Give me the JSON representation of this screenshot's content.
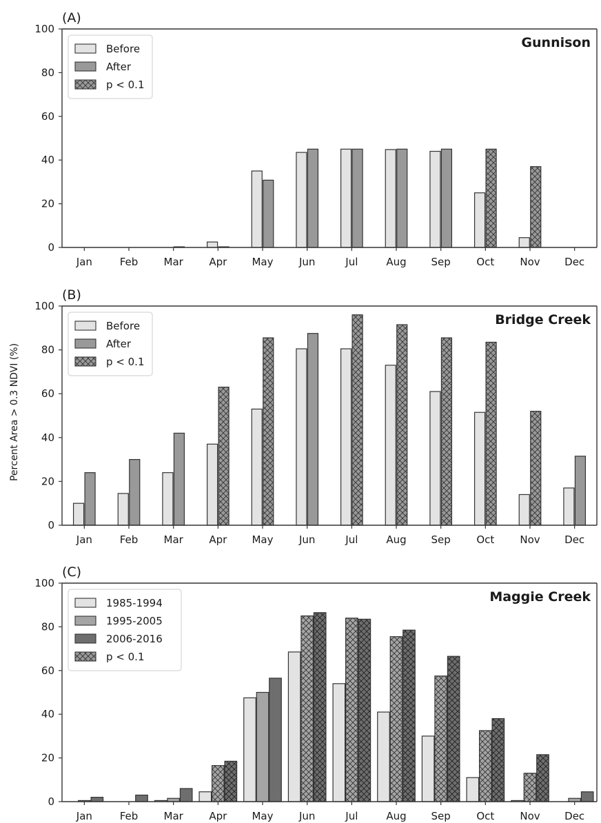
{
  "colors": {
    "before": "#e3e3e3",
    "after": "#999999",
    "period1": "#e3e3e3",
    "period2": "#a5a5a5",
    "period3": "#6e6e6e",
    "edge": "#333333",
    "hatch": "#333333",
    "axis": "#333333"
  },
  "y_axis_label": "Percent Area > 0.3 NDVI (%)",
  "chart_data": [
    {
      "type": "bar",
      "panel_label": "(A)",
      "site": "Gunnison",
      "categories": [
        "Jan",
        "Feb",
        "Mar",
        "Apr",
        "May",
        "Jun",
        "Jul",
        "Aug",
        "Sep",
        "Oct",
        "Nov",
        "Dec"
      ],
      "y_ticks": [
        "0",
        "20",
        "40",
        "60",
        "80",
        "100"
      ],
      "ylim": [
        0,
        100
      ],
      "legend_position": "top-left",
      "legend": [
        {
          "label": "Before",
          "style": "before"
        },
        {
          "label": "After",
          "style": "after"
        },
        {
          "label": "p < 0.1",
          "style": "hatch"
        }
      ],
      "series": [
        {
          "key": "before",
          "values": [
            0,
            0,
            0,
            2.5,
            35,
            43.5,
            45,
            44.8,
            44,
            25,
            4.5,
            0
          ],
          "hatched": []
        },
        {
          "key": "after",
          "values": [
            0,
            0,
            0.3,
            0.3,
            30.8,
            45,
            45,
            45,
            45,
            45,
            37,
            0
          ],
          "hatched": [
            9,
            10
          ]
        }
      ]
    },
    {
      "type": "bar",
      "panel_label": "(B)",
      "site": "Bridge Creek",
      "categories": [
        "Jan",
        "Feb",
        "Mar",
        "Apr",
        "May",
        "Jun",
        "Jul",
        "Aug",
        "Sep",
        "Oct",
        "Nov",
        "Dec"
      ],
      "y_ticks": [
        "0",
        "20",
        "40",
        "60",
        "80",
        "100"
      ],
      "ylim": [
        0,
        100
      ],
      "legend_position": "top-left",
      "legend": [
        {
          "label": "Before",
          "style": "before"
        },
        {
          "label": "After",
          "style": "after"
        },
        {
          "label": "p < 0.1",
          "style": "hatch"
        }
      ],
      "series": [
        {
          "key": "before",
          "values": [
            10,
            14.5,
            24,
            37,
            53,
            80.5,
            80.5,
            73,
            61,
            51.5,
            14,
            17
          ],
          "hatched": []
        },
        {
          "key": "after",
          "values": [
            24,
            30,
            42,
            63,
            85.5,
            87.5,
            96,
            91.5,
            85.5,
            83.5,
            52,
            31.5
          ],
          "hatched": [
            3,
            4,
            6,
            7,
            8,
            9,
            10
          ]
        }
      ]
    },
    {
      "type": "bar",
      "panel_label": "(C)",
      "site": "Maggie Creek",
      "categories": [
        "Jan",
        "Feb",
        "Mar",
        "Apr",
        "May",
        "Jun",
        "Jul",
        "Aug",
        "Sep",
        "Oct",
        "Nov",
        "Dec"
      ],
      "y_ticks": [
        "0",
        "20",
        "40",
        "60",
        "80",
        "100"
      ],
      "ylim": [
        0,
        100
      ],
      "legend_position": "top-left",
      "legend": [
        {
          "label": "1985-1994",
          "style": "period1"
        },
        {
          "label": "1995-2005",
          "style": "period2"
        },
        {
          "label": "2006-2016",
          "style": "period3"
        },
        {
          "label": "p < 0.1",
          "style": "hatch"
        }
      ],
      "series": [
        {
          "key": "period1",
          "values": [
            0,
            0,
            0.5,
            4.5,
            47.5,
            68.5,
            54,
            41,
            30,
            11,
            0.5,
            0
          ],
          "hatched": []
        },
        {
          "key": "period2",
          "values": [
            0.5,
            0,
            1.5,
            16.5,
            50,
            85,
            84,
            75.5,
            57.5,
            32.5,
            13,
            1.5
          ],
          "hatched": [
            3,
            5,
            6,
            7,
            8,
            9,
            10
          ]
        },
        {
          "key": "period3",
          "values": [
            2,
            3,
            6,
            18.5,
            56.5,
            86.5,
            83.5,
            78.5,
            66.5,
            38,
            21.5,
            4.5
          ],
          "hatched": [
            3,
            5,
            6,
            7,
            8,
            9,
            10
          ]
        }
      ]
    }
  ]
}
